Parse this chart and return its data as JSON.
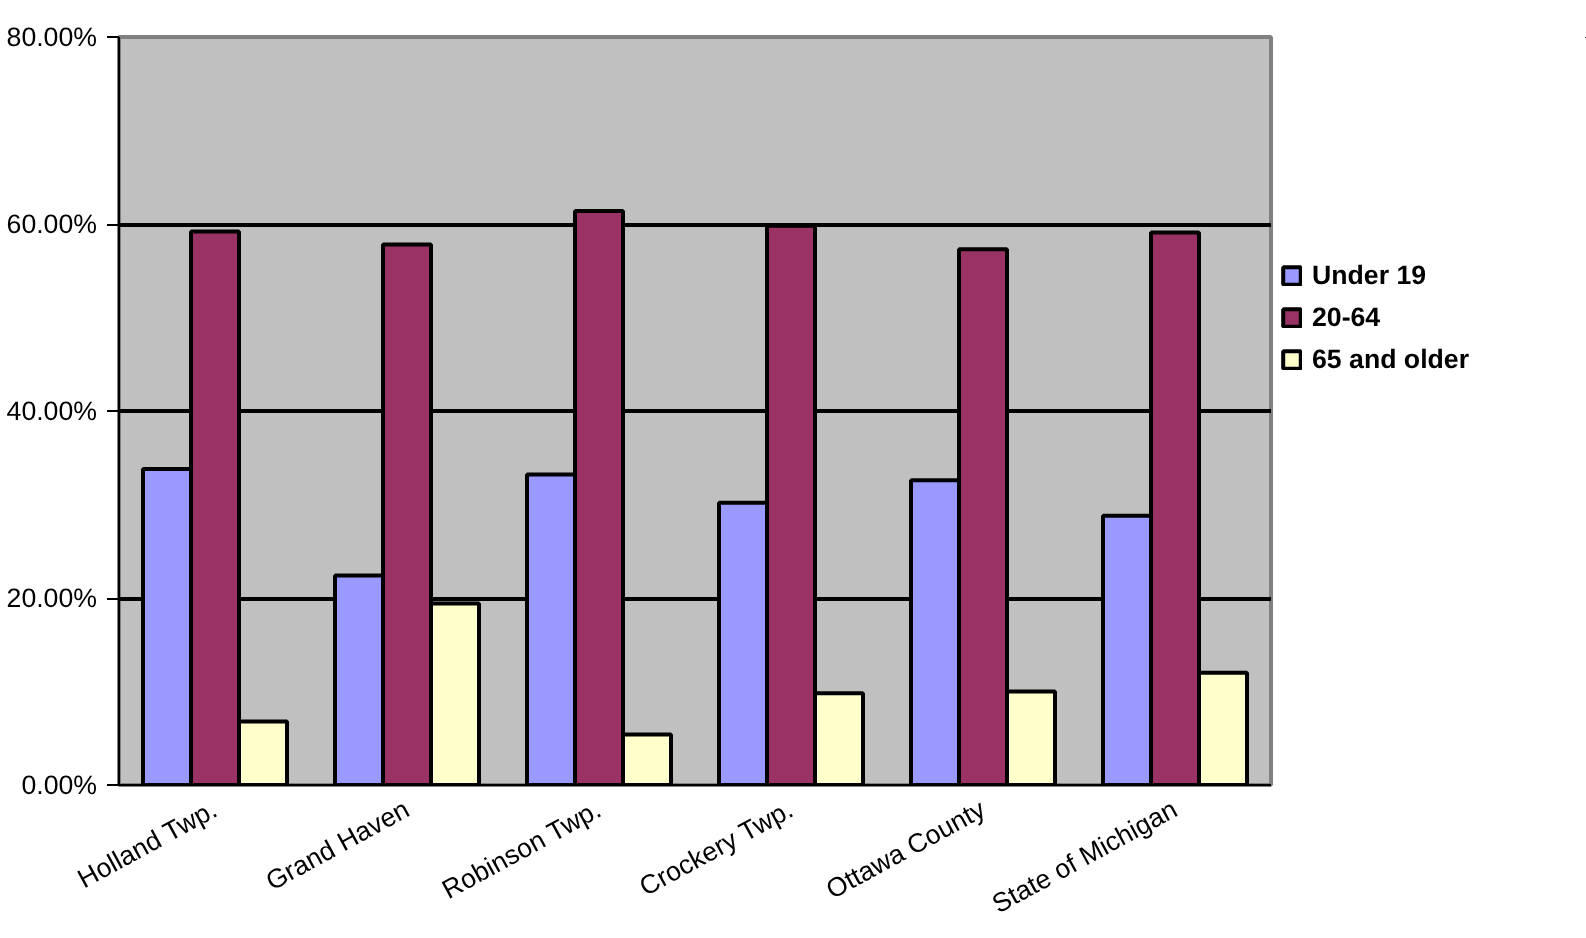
{
  "chart_data": {
    "type": "bar",
    "categories": [
      "Holland Twp.",
      "Grand Haven",
      "Robinson Twp.",
      "Crockery Twp.",
      "Ottawa County",
      "State of Michigan"
    ],
    "series": [
      {
        "name": "Under 19",
        "color": "#9999ff",
        "values": [
          33.8,
          22.4,
          33.2,
          30.2,
          32.6,
          28.8
        ]
      },
      {
        "name": "20-64",
        "color": "#993366",
        "values": [
          59.2,
          57.8,
          61.4,
          59.8,
          57.3,
          59.1
        ]
      },
      {
        "name": "65 and older",
        "color": "#ffffcc",
        "values": [
          6.8,
          19.4,
          5.4,
          9.8,
          10.0,
          12.0
        ]
      }
    ],
    "ylim": [
      0,
      80
    ],
    "yticks": [
      {
        "value": 0,
        "label": "0.00%"
      },
      {
        "value": 20,
        "label": "20.00%"
      },
      {
        "value": 40,
        "label": "40.00%"
      },
      {
        "value": 60,
        "label": "60.00%"
      },
      {
        "value": 80,
        "label": "80.00%"
      }
    ],
    "grid": "y",
    "legend": "right"
  }
}
